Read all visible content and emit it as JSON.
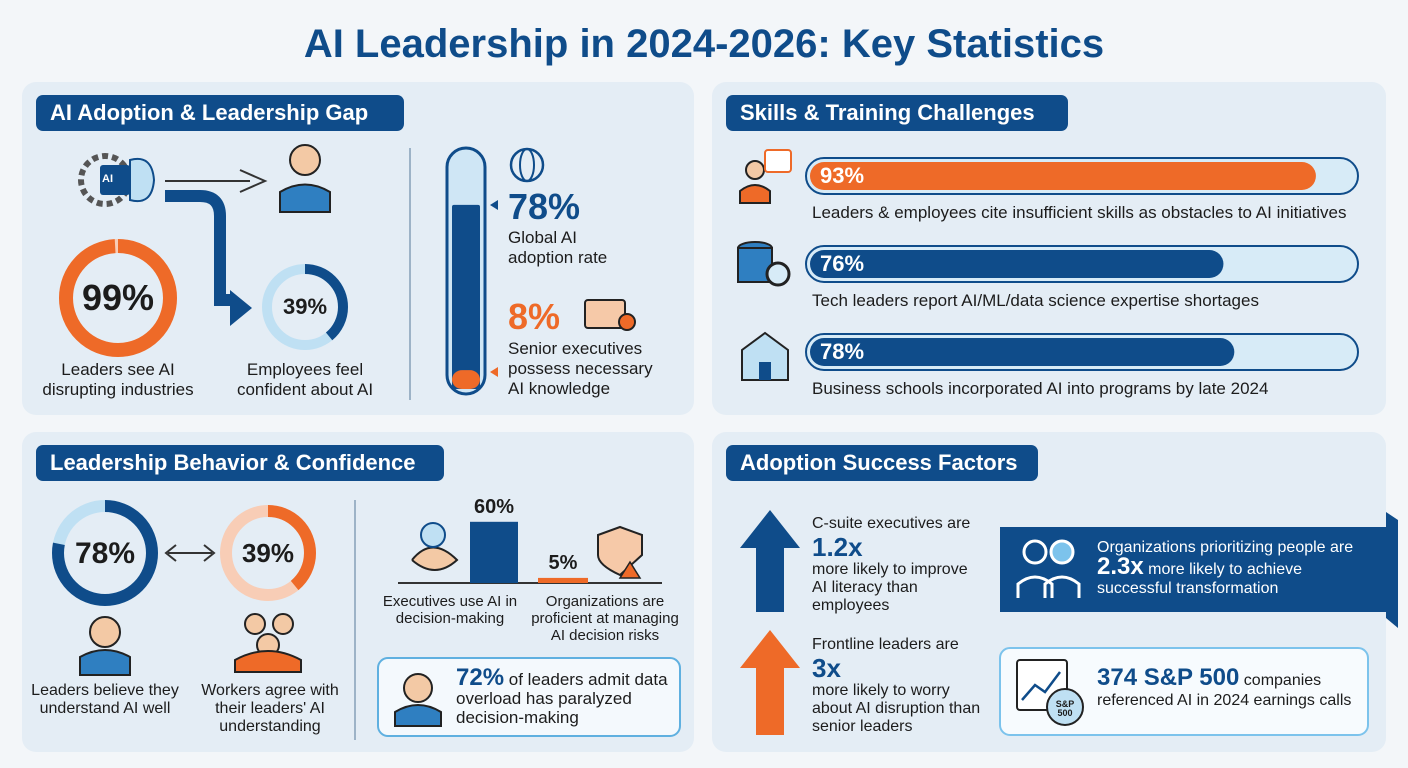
{
  "title": "AI Leadership in 2024-2026: Key Statistics",
  "adoption": {
    "heading": "AI Adoption & Leadership Gap",
    "chip": "AI",
    "donuts": [
      {
        "value": 99,
        "label": "99%",
        "caption": "Leaders see AI disrupting industries"
      },
      {
        "value": 39,
        "label": "39%",
        "caption": "Employees feel confident about AI"
      }
    ],
    "gauge": [
      {
        "value": 78,
        "label": "78%",
        "caption": "Global AI adoption rate"
      },
      {
        "value": 8,
        "label": "8%",
        "caption": "Senior executives possess necessary AI knowledge"
      }
    ]
  },
  "skills": {
    "heading": "Skills & Training Challenges",
    "bars": [
      {
        "value": 93,
        "label": "93%",
        "caption": "Leaders & employees cite insufficient skills as obstacles to AI initiatives"
      },
      {
        "value": 76,
        "label": "76%",
        "caption": "Tech leaders report AI/ML/data science expertise shortages"
      },
      {
        "value": 78,
        "label": "78%",
        "caption": "Business schools incorporated AI into programs by late 2024"
      }
    ]
  },
  "behavior": {
    "heading": "Leadership Behavior & Confidence",
    "donuts": [
      {
        "value": 78,
        "label": "78%",
        "caption": "Leaders believe they understand AI well"
      },
      {
        "value": 39,
        "label": "39%",
        "caption": "Workers agree with their leaders' AI understanding"
      }
    ],
    "columns": [
      {
        "value": 60,
        "label": "60%",
        "caption": "Executives use AI in decision-making"
      },
      {
        "value": 5,
        "label": "5%",
        "caption": "Organizations are proficient at managing AI decision risks"
      }
    ],
    "callout": {
      "highlight": "72%",
      "text": "of leaders admit data overload has paralyzed decision-making"
    }
  },
  "success": {
    "heading": "Adoption Success Factors",
    "arrows": [
      {
        "intro": "C-suite executives are",
        "figure": "1.2x",
        "text": "more likely to improve AI literacy than employees"
      },
      {
        "intro": "Frontline leaders are",
        "figure": "3x",
        "text": "more likely to worry about AI disruption than senior leaders"
      }
    ],
    "banner": {
      "intro": "Organizations prioritizing people are",
      "figure": "2.3x",
      "text": "more likely to achieve successful transformation"
    },
    "earnings": {
      "badge": "S&P 500",
      "figure": "374 S&P 500",
      "text": "companies referenced AI in 2024 earnings calls"
    }
  }
}
